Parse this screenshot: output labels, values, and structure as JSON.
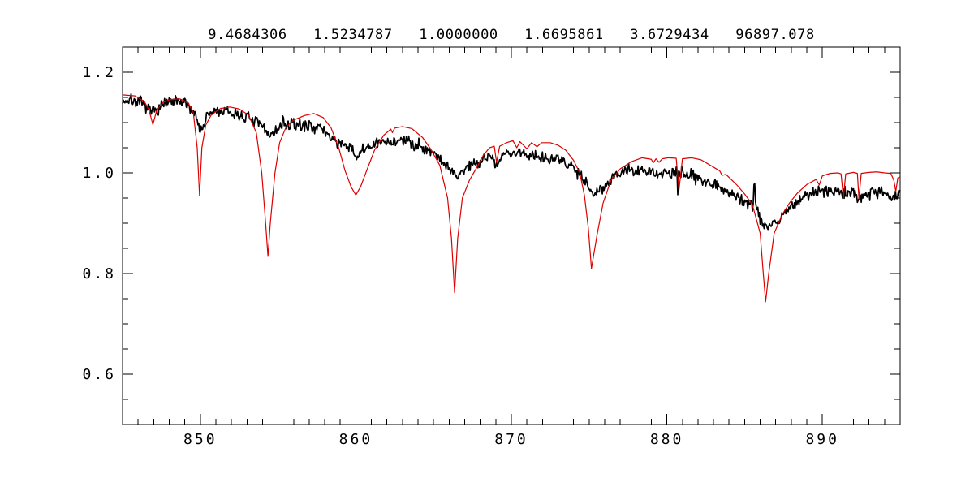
{
  "title": {
    "text": "9.4684306   1.5234787   1.0000000   1.6695861   3.6729434   96897.078",
    "values": [
      "9.4684306",
      "1.5234787",
      "1.0000000",
      "1.6695861",
      "3.6729434",
      "96897.078"
    ]
  },
  "colors": {
    "background": "#ffffff",
    "frame": "#000000",
    "observed": "#000000",
    "model": "#dd0000"
  },
  "chart_data": {
    "type": "line",
    "title": "9.4684306   1.5234787   1.0000000   1.6695861   3.6729434   96897.078",
    "xlabel": "",
    "ylabel": "",
    "grid": false,
    "legend": null,
    "x_axis": {
      "min": 845,
      "max": 895,
      "major_ticks": [
        850,
        860,
        870,
        880,
        890
      ],
      "tick_labels": [
        "850",
        "860",
        "870",
        "880",
        "890"
      ],
      "minor_step": 1
    },
    "y_axis": {
      "min": 0.5,
      "max": 1.25,
      "major_ticks": [
        0.6,
        0.8,
        1.0,
        1.2
      ],
      "tick_labels": [
        "0.6",
        "0.8",
        "1.0",
        "1.2"
      ],
      "minor_step": 0.05
    },
    "notable_absorption_features_nm": [
      846.95,
      849.95,
      854.35,
      860.0,
      866.35,
      869.05,
      875.15,
      880.78,
      886.35,
      891.35,
      892.35
    ],
    "series": [
      {
        "name": "observed-spectrum",
        "style": "noisy",
        "color": "#000000",
        "line_width": 1.7,
        "noise_sigma": 0.006,
        "noise_seed": 7,
        "sample_step": 0.05,
        "points": [
          [
            845.0,
            1.143
          ],
          [
            845.6,
            1.145
          ],
          [
            846.2,
            1.138
          ],
          [
            846.9,
            1.12
          ],
          [
            847.6,
            1.136
          ],
          [
            848.4,
            1.141
          ],
          [
            849.2,
            1.136
          ],
          [
            849.7,
            1.115
          ],
          [
            850.05,
            1.083
          ],
          [
            850.5,
            1.115
          ],
          [
            851.0,
            1.123
          ],
          [
            851.8,
            1.12
          ],
          [
            852.6,
            1.114
          ],
          [
            853.4,
            1.105
          ],
          [
            854.0,
            1.09
          ],
          [
            854.45,
            1.075
          ],
          [
            855.0,
            1.088
          ],
          [
            855.25,
            1.092
          ],
          [
            855.32,
            1.116
          ],
          [
            855.4,
            1.092
          ],
          [
            855.8,
            1.096
          ],
          [
            856.6,
            1.094
          ],
          [
            857.4,
            1.093
          ],
          [
            858.0,
            1.082
          ],
          [
            858.6,
            1.066
          ],
          [
            859.2,
            1.052
          ],
          [
            859.7,
            1.048
          ],
          [
            860.1,
            1.032
          ],
          [
            860.6,
            1.048
          ],
          [
            861.3,
            1.058
          ],
          [
            862.2,
            1.062
          ],
          [
            862.9,
            1.065
          ],
          [
            863.8,
            1.058
          ],
          [
            864.6,
            1.048
          ],
          [
            865.2,
            1.035
          ],
          [
            865.8,
            1.016
          ],
          [
            866.45,
            0.992
          ],
          [
            867.2,
            1.013
          ],
          [
            868.0,
            1.025
          ],
          [
            868.7,
            1.036
          ],
          [
            869.1,
            1.013
          ],
          [
            869.5,
            1.038
          ],
          [
            870.2,
            1.04
          ],
          [
            871.2,
            1.036
          ],
          [
            872.2,
            1.032
          ],
          [
            873.0,
            1.026
          ],
          [
            873.8,
            1.015
          ],
          [
            874.4,
            1.0
          ],
          [
            874.8,
            0.982
          ],
          [
            875.2,
            0.958
          ],
          [
            875.9,
            0.973
          ],
          [
            876.6,
            0.993
          ],
          [
            877.3,
            1.005
          ],
          [
            878.2,
            1.003
          ],
          [
            879.2,
            1.0
          ],
          [
            880.2,
            0.999
          ],
          [
            880.64,
            0.998
          ],
          [
            880.7,
            0.963
          ],
          [
            880.76,
            0.998
          ],
          [
            881.4,
            0.998
          ],
          [
            882.2,
            0.989
          ],
          [
            883.0,
            0.978
          ],
          [
            883.8,
            0.966
          ],
          [
            884.6,
            0.95
          ],
          [
            885.2,
            0.94
          ],
          [
            885.55,
            0.937
          ],
          [
            885.62,
            0.999
          ],
          [
            885.72,
            0.932
          ],
          [
            886.0,
            0.91
          ],
          [
            886.45,
            0.892
          ],
          [
            887.0,
            0.903
          ],
          [
            887.7,
            0.923
          ],
          [
            888.4,
            0.945
          ],
          [
            889.0,
            0.955
          ],
          [
            889.7,
            0.962
          ],
          [
            890.4,
            0.965
          ],
          [
            891.2,
            0.96
          ],
          [
            892.0,
            0.96
          ],
          [
            892.4,
            0.95
          ],
          [
            892.8,
            0.958
          ],
          [
            893.4,
            0.968
          ],
          [
            894.0,
            0.958
          ],
          [
            894.6,
            0.952
          ],
          [
            895.0,
            0.954
          ]
        ]
      },
      {
        "name": "model-spectrum",
        "style": "smooth",
        "color": "#dd0000",
        "line_width": 1.2,
        "points": [
          [
            845.0,
            1.155
          ],
          [
            845.8,
            1.153
          ],
          [
            846.4,
            1.142
          ],
          [
            846.7,
            1.125
          ],
          [
            846.95,
            1.096
          ],
          [
            847.2,
            1.125
          ],
          [
            847.6,
            1.14
          ],
          [
            848.1,
            1.146
          ],
          [
            848.7,
            1.147
          ],
          [
            849.2,
            1.14
          ],
          [
            849.55,
            1.12
          ],
          [
            849.8,
            1.05
          ],
          [
            849.95,
            0.955
          ],
          [
            850.1,
            1.05
          ],
          [
            850.35,
            1.095
          ],
          [
            850.7,
            1.115
          ],
          [
            851.3,
            1.128
          ],
          [
            851.9,
            1.131
          ],
          [
            852.5,
            1.127
          ],
          [
            853.1,
            1.115
          ],
          [
            853.6,
            1.08
          ],
          [
            853.95,
            1.0
          ],
          [
            854.2,
            0.9
          ],
          [
            854.35,
            0.834
          ],
          [
            854.5,
            0.9
          ],
          [
            854.8,
            1.0
          ],
          [
            855.1,
            1.06
          ],
          [
            855.5,
            1.09
          ],
          [
            856.0,
            1.105
          ],
          [
            856.7,
            1.114
          ],
          [
            857.3,
            1.118
          ],
          [
            857.9,
            1.11
          ],
          [
            858.4,
            1.09
          ],
          [
            858.9,
            1.05
          ],
          [
            859.3,
            1.005
          ],
          [
            859.7,
            0.972
          ],
          [
            860.0,
            0.956
          ],
          [
            860.3,
            0.972
          ],
          [
            860.7,
            1.005
          ],
          [
            861.2,
            1.045
          ],
          [
            861.8,
            1.075
          ],
          [
            862.25,
            1.087
          ],
          [
            862.35,
            1.08
          ],
          [
            862.5,
            1.089
          ],
          [
            863.0,
            1.092
          ],
          [
            863.6,
            1.088
          ],
          [
            864.3,
            1.07
          ],
          [
            864.8,
            1.048
          ],
          [
            865.4,
            1.015
          ],
          [
            865.9,
            0.95
          ],
          [
            866.15,
            0.87
          ],
          [
            866.35,
            0.762
          ],
          [
            866.55,
            0.87
          ],
          [
            866.85,
            0.95
          ],
          [
            867.3,
            0.985
          ],
          [
            867.8,
            1.012
          ],
          [
            868.2,
            1.035
          ],
          [
            868.6,
            1.05
          ],
          [
            868.9,
            1.053
          ],
          [
            869.05,
            1.021
          ],
          [
            869.25,
            1.053
          ],
          [
            869.7,
            1.06
          ],
          [
            870.1,
            1.064
          ],
          [
            870.35,
            1.05
          ],
          [
            870.55,
            1.062
          ],
          [
            871.0,
            1.048
          ],
          [
            871.3,
            1.06
          ],
          [
            871.65,
            1.052
          ],
          [
            871.95,
            1.06
          ],
          [
            872.5,
            1.06
          ],
          [
            873.0,
            1.055
          ],
          [
            873.5,
            1.045
          ],
          [
            874.0,
            1.025
          ],
          [
            874.4,
            1.0
          ],
          [
            874.7,
            0.955
          ],
          [
            874.95,
            0.89
          ],
          [
            875.15,
            0.81
          ],
          [
            875.5,
            0.875
          ],
          [
            875.9,
            0.94
          ],
          [
            876.4,
            0.985
          ],
          [
            877.0,
            1.008
          ],
          [
            877.7,
            1.022
          ],
          [
            878.4,
            1.03
          ],
          [
            879.0,
            1.027
          ],
          [
            879.12,
            1.02
          ],
          [
            879.3,
            1.028
          ],
          [
            879.5,
            1.021
          ],
          [
            879.7,
            1.028
          ],
          [
            880.1,
            1.03
          ],
          [
            880.6,
            1.029
          ],
          [
            880.78,
            0.966
          ],
          [
            881.0,
            1.028
          ],
          [
            881.6,
            1.03
          ],
          [
            882.2,
            1.026
          ],
          [
            882.8,
            1.015
          ],
          [
            883.4,
            1.004
          ],
          [
            883.55,
            0.995
          ],
          [
            883.8,
            0.997
          ],
          [
            884.1,
            0.988
          ],
          [
            884.5,
            0.976
          ],
          [
            885.0,
            0.958
          ],
          [
            885.5,
            0.937
          ],
          [
            886.0,
            0.88
          ],
          [
            886.2,
            0.8
          ],
          [
            886.35,
            0.744
          ],
          [
            886.55,
            0.8
          ],
          [
            886.9,
            0.88
          ],
          [
            887.4,
            0.916
          ],
          [
            887.9,
            0.941
          ],
          [
            888.4,
            0.96
          ],
          [
            889.0,
            0.977
          ],
          [
            889.6,
            0.987
          ],
          [
            889.8,
            0.976
          ],
          [
            890.0,
            0.994
          ],
          [
            890.5,
            0.999
          ],
          [
            891.0,
            1.0
          ],
          [
            891.2,
            0.998
          ],
          [
            891.35,
            0.95
          ],
          [
            891.5,
            0.998
          ],
          [
            892.0,
            1.001
          ],
          [
            892.25,
            0.999
          ],
          [
            892.35,
            0.949
          ],
          [
            892.5,
            0.999
          ],
          [
            893.0,
            1.001
          ],
          [
            893.5,
            1.002
          ],
          [
            894.0,
            1.0
          ],
          [
            894.4,
            0.999
          ],
          [
            894.6,
            0.985
          ],
          [
            894.72,
            0.963
          ],
          [
            894.85,
            0.99
          ],
          [
            895.0,
            0.992
          ]
        ]
      }
    ]
  }
}
